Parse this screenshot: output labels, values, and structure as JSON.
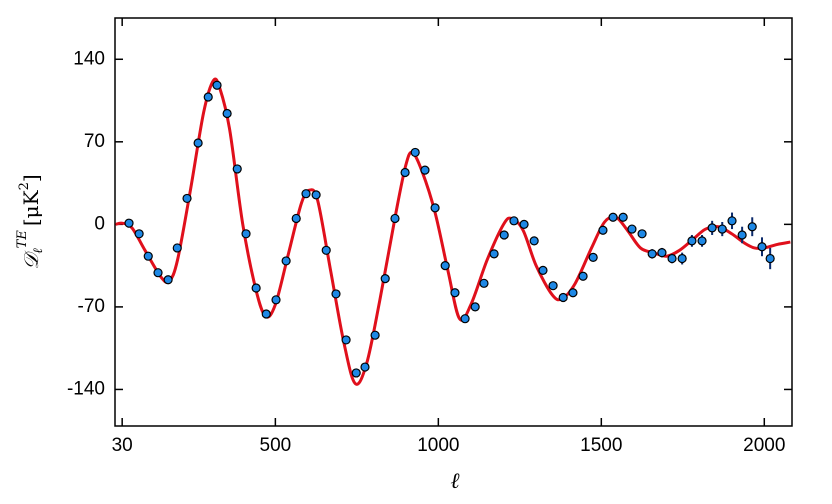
{
  "chart_data": {
    "type": "scatter",
    "xlabel": "ℓ",
    "ylabel": [
      "𝒟",
      "ℓ",
      "TE",
      "[μK",
      "2",
      "]"
    ],
    "xlim": [
      8,
      2085
    ],
    "ylim": [
      -171,
      175
    ],
    "xticks": [
      30,
      500,
      1000,
      1500,
      2000
    ],
    "yticks": [
      140,
      70,
      0,
      -70,
      -140
    ],
    "series": [
      {
        "color": "#1e88e5",
        "x": [
          51,
          82,
          110,
          140,
          171,
          199,
          229,
          263,
          294,
          321,
          352,
          383,
          410,
          441,
          472,
          502,
          533,
          564,
          594,
          625,
          656,
          686,
          717,
          748,
          775,
          806,
          837,
          867,
          898,
          929,
          959,
          990,
          1021,
          1051,
          1082,
          1113,
          1140,
          1171,
          1202,
          1232,
          1263,
          1294,
          1321,
          1352,
          1383,
          1413,
          1444,
          1475,
          1505,
          1536,
          1567,
          1594,
          1625,
          1656,
          1686,
          1717,
          1748,
          1778,
          1809,
          1840,
          1871,
          1901,
          1932,
          1963,
          1993,
          2018
        ],
        "values": [
          1,
          -8,
          -27,
          -41,
          -47,
          -20,
          22,
          69,
          108,
          118,
          94,
          47,
          -8,
          -54,
          -76,
          -64,
          -31,
          5,
          26,
          25,
          -22,
          -59,
          -98,
          -126,
          -121,
          -94,
          -46,
          5,
          44,
          61,
          46,
          14,
          -35,
          -58,
          -80,
          -70,
          -50,
          -25,
          -9,
          3,
          0,
          -14,
          -39,
          -52,
          -62,
          -58,
          -44,
          -28,
          -5,
          6,
          6,
          -4,
          -8,
          -25,
          -24,
          -29,
          -29,
          -14,
          -14,
          -3,
          -4,
          3,
          -9,
          -2,
          -19,
          -29
        ],
        "errors": [
          2,
          2,
          2,
          2,
          2,
          2,
          2,
          2,
          2,
          2,
          2,
          2,
          2,
          2,
          2,
          2,
          2,
          2,
          2,
          2,
          2,
          2,
          2,
          2,
          2,
          2,
          2,
          2,
          2,
          2,
          2,
          2,
          2,
          2,
          2,
          2,
          2,
          2,
          2,
          2,
          2,
          2,
          2,
          2,
          2,
          2,
          2,
          2,
          2,
          2,
          3,
          3,
          3,
          4,
          4,
          4,
          5,
          5,
          5,
          6,
          6,
          7,
          7,
          8,
          8,
          9
        ]
      },
      {
        "color": "#e0101c",
        "x": [
          10,
          30,
          60,
          100,
          150,
          175,
          200,
          240,
          280,
          310,
          330,
          360,
          400,
          440,
          470,
          500,
          540,
          580,
          605,
          630,
          670,
          710,
          745,
          780,
          820,
          870,
          900,
          920,
          950,
          990,
          1030,
          1065,
          1100,
          1150,
          1200,
          1225,
          1260,
          1300,
          1350,
          1380,
          1420,
          1470,
          1510,
          1545,
          1580,
          1620,
          1660,
          1700,
          1740,
          1780,
          1820,
          1860,
          1900,
          1940,
          1970,
          2000,
          2040,
          2080
        ],
        "values": [
          0,
          1,
          -3,
          -22,
          -45,
          -48,
          -30,
          30,
          95,
          122,
          115,
          80,
          0,
          -55,
          -78,
          -68,
          -25,
          18,
          29,
          20,
          -40,
          -100,
          -135,
          -118,
          -65,
          10,
          50,
          61,
          45,
          10,
          -40,
          -80,
          -68,
          -30,
          0,
          5,
          -5,
          -35,
          -60,
          -63,
          -50,
          -20,
          2,
          6,
          -5,
          -20,
          -24,
          -27,
          -22,
          -13,
          -4,
          -2,
          -8,
          -16,
          -20,
          -20,
          -17,
          -15
        ]
      }
    ]
  }
}
